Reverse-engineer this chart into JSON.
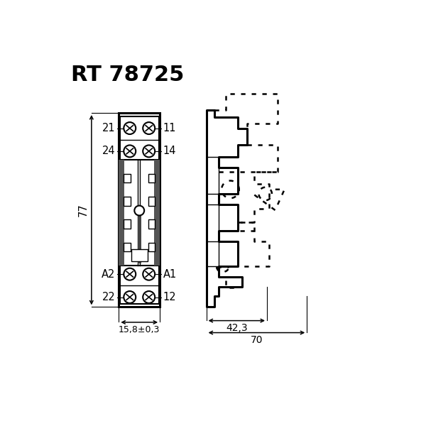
{
  "title": "RT 78725",
  "bg_color": "#ffffff",
  "line_color": "#000000",
  "labels_left": [
    "21",
    "24",
    "A2",
    "22"
  ],
  "labels_right": [
    "11",
    "14",
    "A1",
    "12"
  ],
  "dim_width": "15,8±0,3",
  "dim_42": "42,3",
  "dim_70": "70",
  "dim_77": "77"
}
